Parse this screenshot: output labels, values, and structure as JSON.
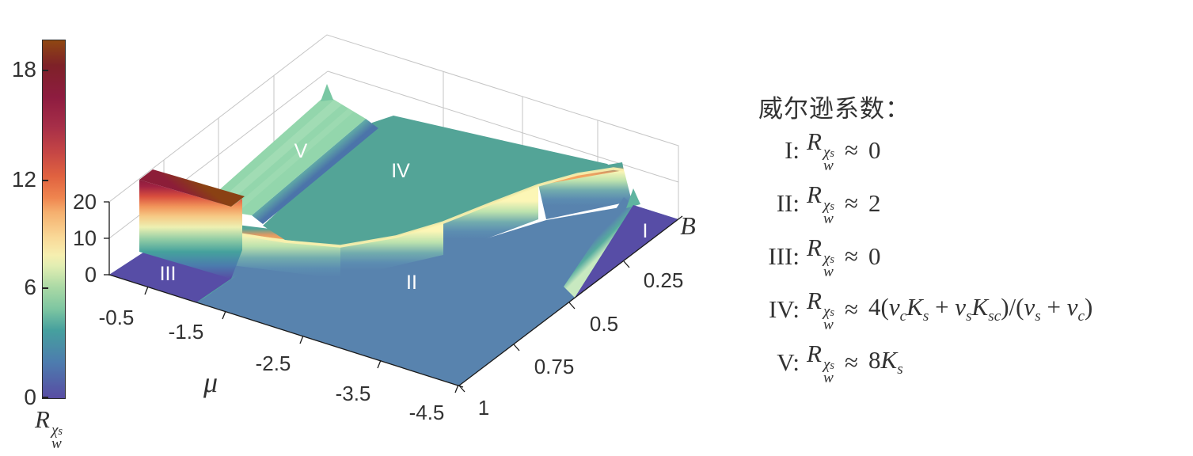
{
  "colorbar": {
    "ticks": [
      "18",
      "12",
      "6",
      "0"
    ],
    "label": {
      "base": "R",
      "sup": "χ",
      "sup_sub": "s",
      "sub": "w"
    }
  },
  "axes": {
    "z": {
      "ticks": [
        "20",
        "10",
        "0"
      ]
    },
    "mu": {
      "label": "μ",
      "ticks": [
        "-0.5",
        "-1.5",
        "-2.5",
        "-3.5",
        "-4.5"
      ]
    },
    "b": {
      "label": "B",
      "ticks": [
        "0.25",
        "0.5",
        "0.75",
        "1"
      ]
    }
  },
  "regions": {
    "labels": [
      "I",
      "II",
      "III",
      "IV",
      "V"
    ]
  },
  "legend": {
    "title": "威尔逊系数：",
    "approx": "≈",
    "rsym": {
      "base": "R",
      "sup": "χ",
      "sup_sub": "s",
      "sub": "w"
    },
    "items": [
      {
        "label": "I:",
        "rhs": [
          [
            "0"
          ]
        ]
      },
      {
        "label": "II:",
        "rhs": [
          [
            "2"
          ]
        ]
      },
      {
        "label": "III:",
        "rhs": [
          [
            "0"
          ]
        ]
      },
      {
        "label": "IV:",
        "rhs": [
          [
            "4("
          ],
          [
            "v",
            "c"
          ],
          [
            "K",
            "s"
          ],
          [
            " + "
          ],
          [
            "v",
            "s"
          ],
          [
            "K",
            "sc"
          ],
          [
            ")/("
          ],
          [
            "v",
            "s"
          ],
          [
            " + "
          ],
          [
            "v",
            "c"
          ],
          [
            ")"
          ]
        ]
      },
      {
        "label": "V:",
        "rhs": [
          [
            "8"
          ],
          [
            "K",
            "s"
          ]
        ]
      }
    ]
  },
  "chart_data": {
    "type": "surface",
    "title": "",
    "xlabel": "μ",
    "ylabel": "B",
    "zlabel": "R_w^{χ_s}",
    "x_range": [
      -4.5,
      0
    ],
    "y_range": [
      0,
      1
    ],
    "z_range": [
      0,
      20
    ],
    "x_ticks": [
      -0.5,
      -1.5,
      -2.5,
      -3.5,
      -4.5
    ],
    "y_ticks": [
      0.25,
      0.5,
      0.75,
      1
    ],
    "z_ticks": [
      0,
      10,
      20
    ],
    "colorbar_range": [
      0,
      20
    ],
    "colorbar_ticks": [
      0,
      6,
      12,
      18
    ],
    "colormap": "spectral-like: purple -> blue -> teal -> green -> pale yellow -> orange -> red -> dark brown",
    "grid": true,
    "legend_position": "right text block",
    "regions": [
      {
        "label": "I",
        "z_approx": 0,
        "meaning": "R_w^χs ≈ 0",
        "location": "corner near μ≈-4.5, B≲0.3",
        "surface_color": "purple"
      },
      {
        "label": "II",
        "z_approx": 2,
        "meaning": "R_w^χs ≈ 2",
        "location": "large front plain",
        "surface_color": "steel blue"
      },
      {
        "label": "III",
        "z_approx": 0,
        "meaning": "R_w^χs ≈ 0",
        "location": "corner near μ≈-0.5..-1.3, B≈1",
        "surface_color": "purple"
      },
      {
        "label": "IV",
        "z_approx": 5.5,
        "meaning": "R_w^χs ≈ 4(v_cK_s + v_sK_sc)/(v_s + v_c)",
        "location": "middle elevated plateau",
        "surface_color": "teal"
      },
      {
        "label": "V",
        "z_approx": 8.5,
        "meaning": "R_w^χs ≈ 8K_s",
        "location": "back-left elevated plateau",
        "surface_color": "light green"
      }
    ],
    "features": [
      {
        "name": "tall wall ridge",
        "z_approx": 19,
        "location": "between regions III and V, μ≈-0.5..-1.2"
      },
      {
        "name": "rainbow transition ridge",
        "z_approx": 12,
        "location": "boundary between plateaus IV/V and plain II"
      },
      {
        "name": "small green ridge",
        "z_approx": 6,
        "location": "boundary between II and I near μ≈-4.5"
      }
    ]
  }
}
